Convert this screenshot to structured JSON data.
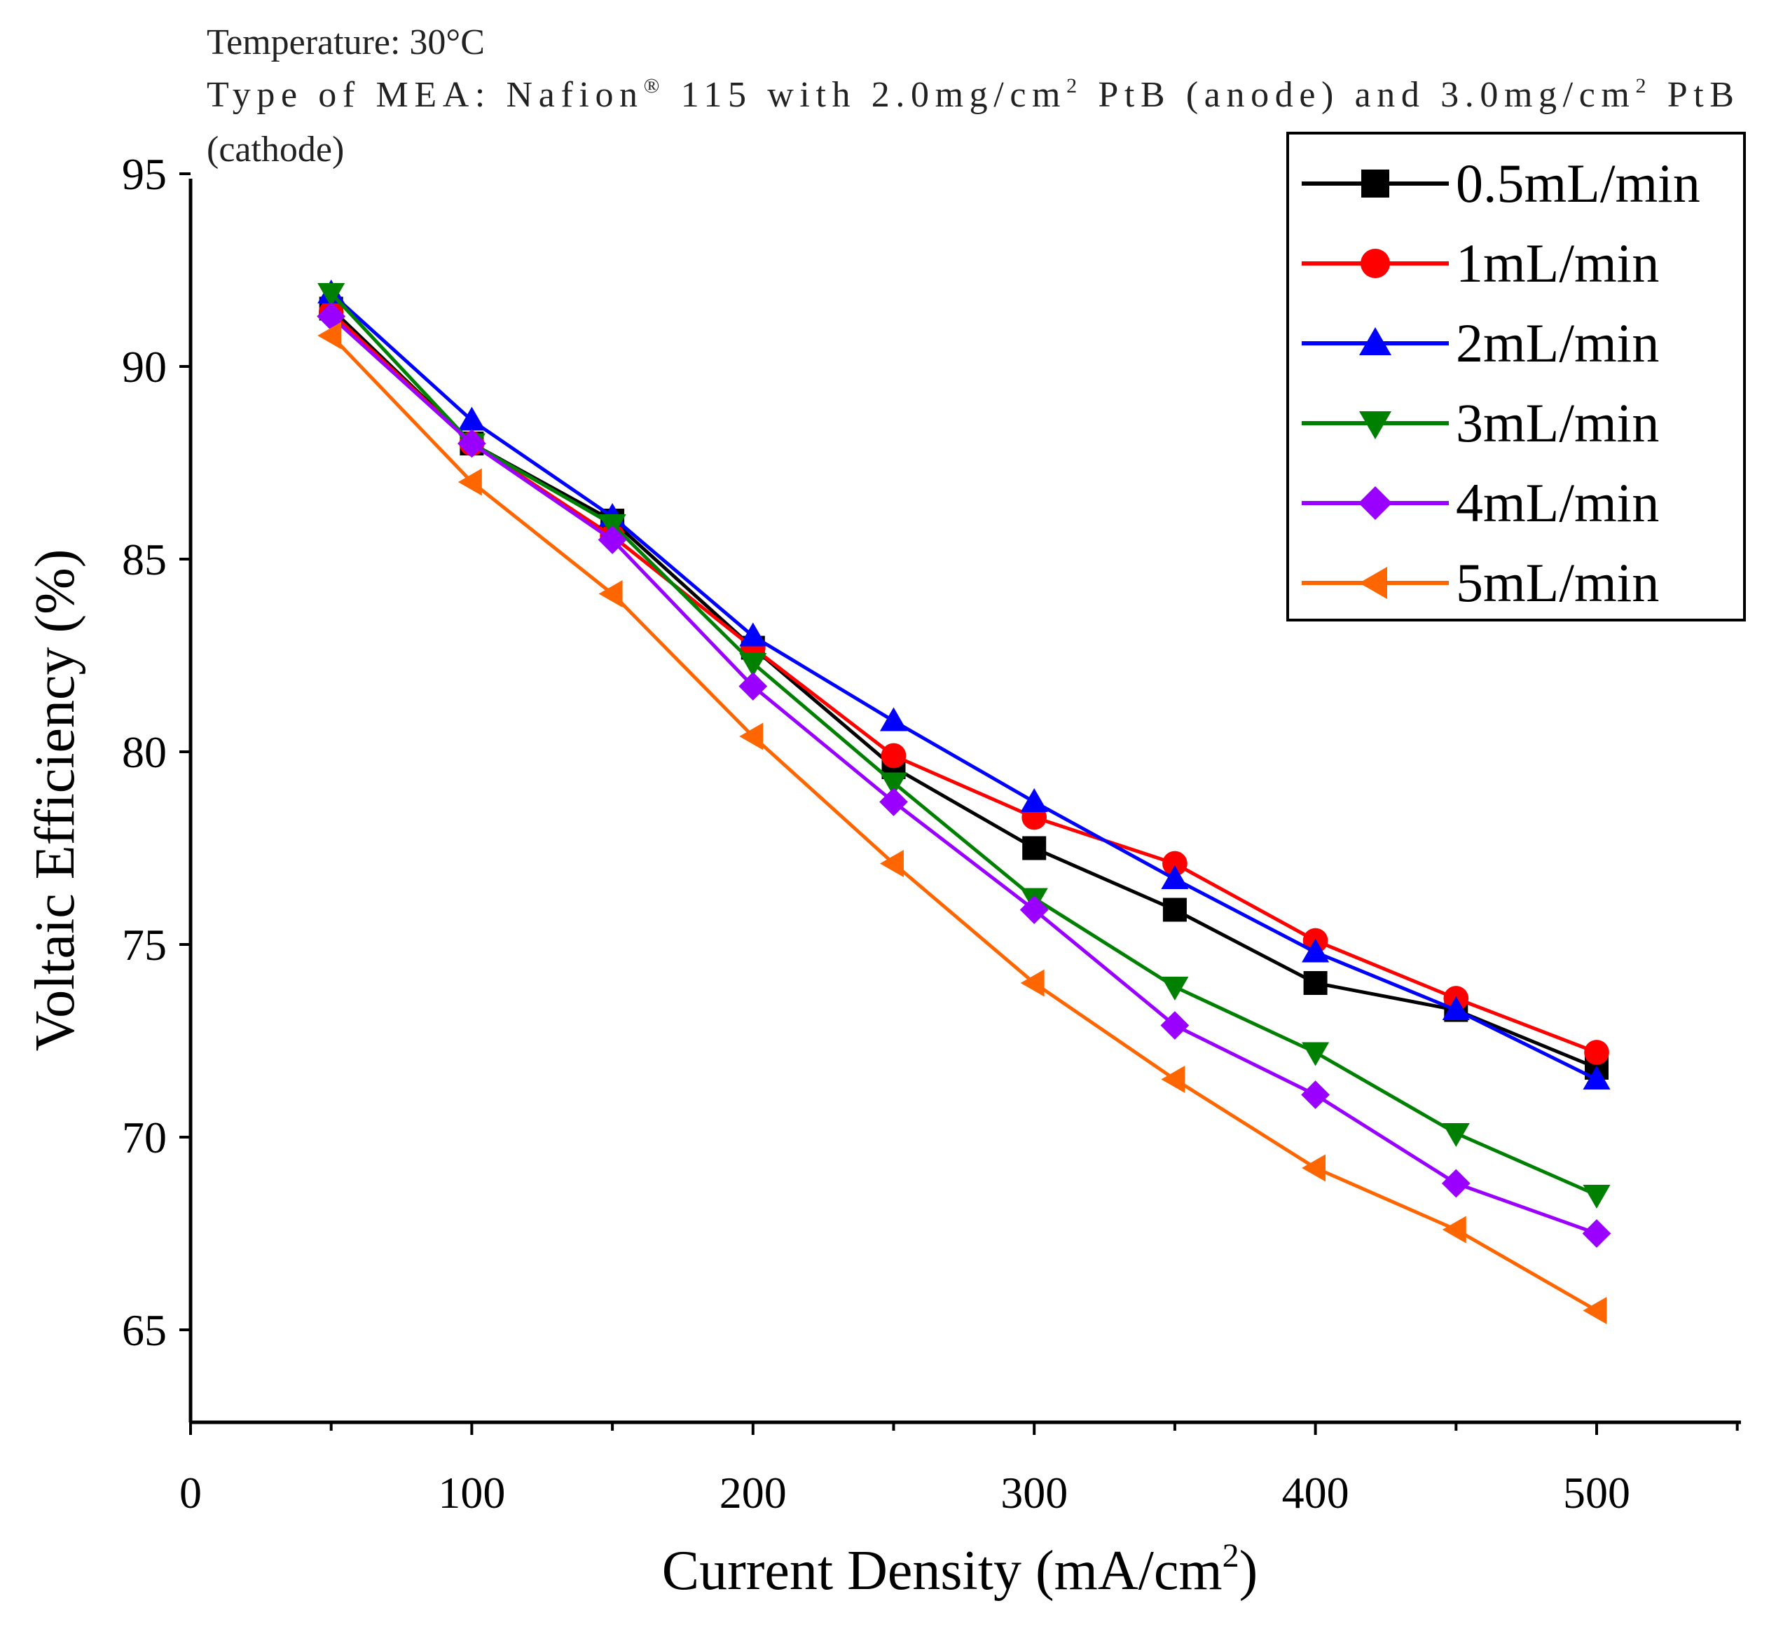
{
  "annotations": {
    "temperature": "Temperature: 30°C",
    "mea_line_start": "Type of MEA: Nafion",
    "mea_reg_mark": "®",
    "mea_line_mid1": " 115 with 2.0mg/cm",
    "mea_sup1": "2",
    "mea_line_mid2": " PtB (anode) and 3.0mg/cm",
    "mea_sup2": "2",
    "mea_line_end": " PtB",
    "mea_line2": "(cathode)"
  },
  "colors": {
    "axis": "#000000",
    "s05": "#000000",
    "s1": "#ff0000",
    "s2": "#0000ff",
    "s3": "#008000",
    "s4": "#9900ff",
    "s5": "#ff6600"
  },
  "chart_data": {
    "type": "line",
    "title": "",
    "xlabel": "Current Density (mA/cm",
    "xlabel_sup": "2",
    "xlabel_end": ")",
    "ylabel": "Voltaic Efficiency (%)",
    "xlim": [
      0,
      550
    ],
    "ylim": [
      62.5,
      95
    ],
    "x_ticks": [
      0,
      100,
      200,
      300,
      400,
      500
    ],
    "x_tick_labels": [
      "0",
      "100",
      "200",
      "300",
      "400",
      "500"
    ],
    "y_ticks": [
      65,
      70,
      75,
      80,
      85,
      90,
      95
    ],
    "y_tick_labels": [
      "65",
      "70",
      "75",
      "80",
      "85",
      "90",
      "95"
    ],
    "x": [
      50,
      100,
      150,
      200,
      250,
      300,
      350,
      400,
      450,
      500
    ],
    "legend_position": "top-right",
    "series": [
      {
        "name": "0.5mL/min",
        "color": "#000000",
        "marker": "square",
        "values": [
          91.5,
          88.0,
          86.0,
          82.7,
          79.6,
          77.5,
          75.9,
          74.0,
          73.3,
          71.8
        ]
      },
      {
        "name": "1mL/min",
        "color": "#ff0000",
        "marker": "circle",
        "values": [
          91.4,
          88.0,
          85.6,
          82.7,
          79.9,
          78.3,
          77.1,
          75.1,
          73.6,
          72.2
        ]
      },
      {
        "name": "2mL/min",
        "color": "#0000ff",
        "marker": "triangle-up",
        "values": [
          91.9,
          88.6,
          86.1,
          83.0,
          80.8,
          78.7,
          76.7,
          74.8,
          73.3,
          71.5
        ]
      },
      {
        "name": "3mL/min",
        "color": "#008000",
        "marker": "triangle-down",
        "values": [
          91.9,
          88.0,
          85.9,
          82.3,
          79.2,
          76.2,
          73.9,
          72.2,
          70.1,
          68.5
        ]
      },
      {
        "name": "4mL/min",
        "color": "#9900ff",
        "marker": "diamond",
        "values": [
          91.3,
          88.0,
          85.5,
          81.7,
          78.7,
          75.9,
          72.9,
          71.1,
          68.8,
          67.5
        ]
      },
      {
        "name": "5mL/min",
        "color": "#ff6600",
        "marker": "triangle-left",
        "values": [
          90.8,
          87.0,
          84.1,
          80.4,
          77.1,
          74.0,
          71.5,
          69.2,
          67.6,
          65.5
        ]
      }
    ]
  }
}
